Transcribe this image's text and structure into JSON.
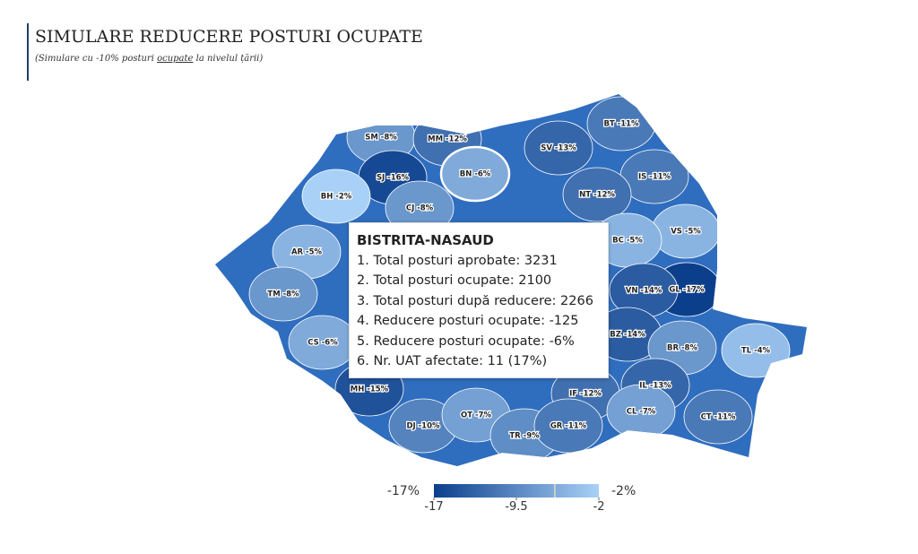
{
  "header": {
    "title": "SIMULARE REDUCERE POSTURI OCUPATE",
    "subtitle": {
      "before": "(Simulare cu -10% posturi ",
      "link": "ocupate",
      "after": " la nivelul țării)"
    }
  },
  "map": {
    "regions": [
      {
        "label": "SM -8%",
        "value": -8
      },
      {
        "label": "MM -12%",
        "value": -12
      },
      {
        "label": "BT -11%",
        "value": -11
      },
      {
        "label": "SJ -16%",
        "value": -16
      },
      {
        "label": "BN -6%",
        "value": -6
      },
      {
        "label": "SV -13%",
        "value": -13
      },
      {
        "label": "BH -2%",
        "value": -2
      },
      {
        "label": "IS -11%",
        "value": -11
      },
      {
        "label": "NT -12%",
        "value": -12
      },
      {
        "label": "CJ -8%",
        "value": -8
      },
      {
        "label": "VS -5%",
        "value": -5
      },
      {
        "label": "BC -5%",
        "value": -5
      },
      {
        "label": "AR -5%",
        "value": -5
      },
      {
        "label": "GL -17%",
        "value": -17
      },
      {
        "label": "TM -8%",
        "value": -8
      },
      {
        "label": "VN -14%",
        "value": -14
      },
      {
        "label": "CS -6%",
        "value": -6
      },
      {
        "label": "BZ -14%",
        "value": -14
      },
      {
        "label": "BR -8%",
        "value": -8
      },
      {
        "label": "TL -4%",
        "value": -4
      },
      {
        "label": "MH -15%",
        "value": -15
      },
      {
        "label": "IF -12%",
        "value": -12
      },
      {
        "label": "IL -13%",
        "value": -13
      },
      {
        "label": "DJ -10%",
        "value": -10
      },
      {
        "label": "OT -7%",
        "value": -7
      },
      {
        "label": "CL -7%",
        "value": -7
      },
      {
        "label": "TR -9%",
        "value": -9
      },
      {
        "label": "GR -11%",
        "value": -11
      },
      {
        "label": "CT -11%",
        "value": -11
      }
    ],
    "scale": {
      "min": -17,
      "max": -2,
      "min_label": "-17%",
      "max_label": "-2%",
      "ticks": [
        -17,
        -9.5,
        -2
      ],
      "colors": [
        "#0b3f8c",
        "#a9d1f7"
      ]
    }
  },
  "tooltip": {
    "title": "BISTRITA-NASAUD",
    "lines": [
      "1. Total posturi aprobate: 3231",
      "2. Total posturi ocupate: 2100",
      "3. Total posturi după reducere: 2266",
      "4. Reducere posturi ocupate: -125",
      "5. Reducere posturi ocupate: -6%",
      "6. Nr. UAT afectate: 11 (17%)"
    ]
  }
}
